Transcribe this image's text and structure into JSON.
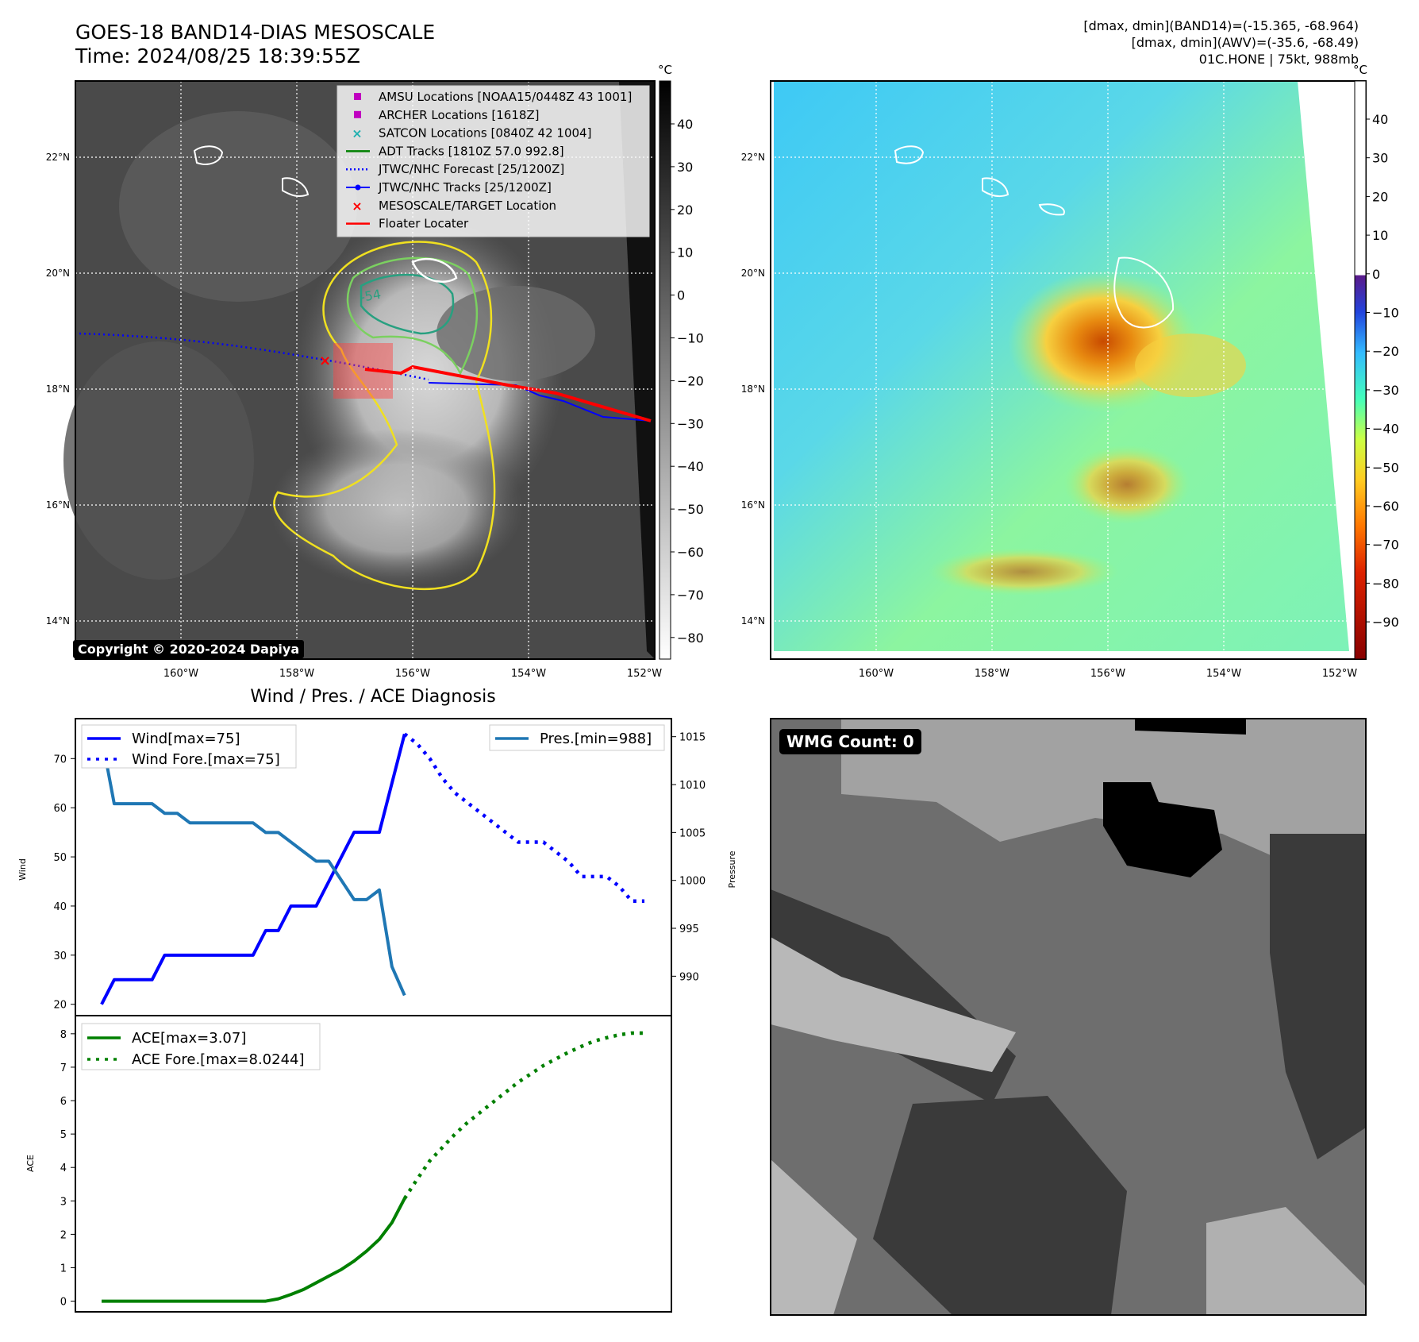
{
  "header": {
    "title_line1": "GOES-18 BAND14-DIAS MESOSCALE",
    "title_line2": "Time: 2024/08/25 18:39:55Z",
    "info_line1": "[dmax, dmin](BAND14)=(-15.365, -68.964)",
    "info_line2": "[dmax, dmin](AWV)=(-35.6, -68.49)",
    "info_line3": "01C.HONE | 75kt, 988mb"
  },
  "map": {
    "lon_ticks": [
      "160°W",
      "158°W",
      "156°W",
      "154°W",
      "152°W"
    ],
    "lat_ticks": [
      "22°N",
      "20°N",
      "18°N",
      "16°N",
      "14°N"
    ],
    "copyright": "Copyright © 2020-2024 Dapiya",
    "contour_labels": [
      "-54"
    ],
    "legend": [
      {
        "label": "AMSU Locations [NOAA15/0448Z 43 1001]",
        "color": "#c000c0",
        "marker": "square"
      },
      {
        "label": "ARCHER Locations [1618Z]",
        "color": "#c000c0",
        "marker": "square"
      },
      {
        "label": "SATCON Locations [0840Z 42 1004]",
        "color": "#20b0b0",
        "marker": "x"
      },
      {
        "label": "ADT Tracks [1810Z 57.0 992.8]",
        "color": "#008000",
        "marker": "line"
      },
      {
        "label": "JTWC/NHC Forecast [25/1200Z]",
        "color": "#0000ff",
        "marker": "dotted"
      },
      {
        "label": "JTWC/NHC Tracks [25/1200Z]",
        "color": "#0000ff",
        "marker": "line-dot"
      },
      {
        "label": "MESOSCALE/TARGET Location",
        "color": "#ff0000",
        "marker": "x"
      },
      {
        "label": "Floater Locater",
        "color": "#ff0000",
        "marker": "line"
      }
    ]
  },
  "colorbar_gray": {
    "unit": "°C",
    "ticks": [
      "40",
      "30",
      "20",
      "10",
      "0",
      "−10",
      "−20",
      "−30",
      "−40",
      "−50",
      "−60",
      "−70",
      "−80"
    ]
  },
  "colorbar_color": {
    "unit": "°C",
    "ticks": [
      "40",
      "30",
      "20",
      "10",
      "0",
      "−10",
      "−20",
      "−30",
      "−40",
      "−50",
      "−60",
      "−70",
      "−80",
      "−90"
    ]
  },
  "chart_data": [
    {
      "type": "line",
      "title": "Wind / Pres. / ACE Diagnosis",
      "ylabel": "Wind",
      "ylabel_right": "Pressure",
      "ylim": [
        18.5,
        77
      ],
      "ylim_right": [
        986.3,
        1016.3
      ],
      "yticks": [
        20,
        30,
        40,
        50,
        60,
        70
      ],
      "yticks_right": [
        990,
        995,
        1000,
        1005,
        1010,
        1015
      ],
      "series": [
        {
          "name": "Wind[max=75]",
          "color": "#0000ff",
          "style": "solid",
          "x": [
            0,
            0.5,
            1,
            2,
            2.5,
            3,
            4,
            5,
            6,
            6.5,
            7,
            7.5,
            8,
            8.5,
            9,
            9.5,
            10,
            10.5,
            11,
            11.5,
            12
          ],
          "values": [
            20,
            25,
            25,
            25,
            30,
            30,
            30,
            30,
            30,
            35,
            35,
            40,
            40,
            40,
            45,
            50,
            55,
            55,
            55,
            65,
            75
          ]
        },
        {
          "name": "Wind Fore.[max=75]",
          "color": "#0000ff",
          "style": "dotted",
          "x": [
            12,
            12.5,
            13,
            13.5,
            14,
            14.5,
            15,
            15.5,
            16,
            16.5,
            17,
            17.5,
            18,
            18.5,
            19,
            19.5,
            20,
            20.5,
            21,
            21.5
          ],
          "values": [
            75,
            73,
            70,
            66,
            63,
            61,
            59,
            57,
            55,
            53,
            53,
            53,
            51,
            49,
            46,
            46,
            46,
            44,
            41,
            41
          ]
        },
        {
          "name": "Pres.[min=988]",
          "color": "#1f77b4",
          "style": "solid",
          "axis": "right",
          "x": [
            0,
            0.5,
            1,
            1.5,
            2,
            2.5,
            3,
            3.5,
            4,
            4.5,
            5,
            5.5,
            6,
            6.5,
            7,
            7.5,
            8,
            8.5,
            9,
            9.5,
            10,
            10.5,
            11,
            11.5,
            12
          ],
          "values": [
            1015,
            1008,
            1008,
            1008,
            1008,
            1007,
            1007,
            1006,
            1006,
            1006,
            1006,
            1006,
            1006,
            1005,
            1005,
            1004,
            1003,
            1002,
            1002,
            1000,
            998,
            998,
            999,
            991,
            988
          ]
        }
      ]
    },
    {
      "type": "line",
      "ylabel": "ACE",
      "ylim": [
        -0.2,
        8.4
      ],
      "yticks": [
        0,
        1,
        2,
        3,
        4,
        5,
        6,
        7,
        8
      ],
      "series": [
        {
          "name": "ACE[max=3.07]",
          "color": "#008000",
          "style": "solid",
          "x": [
            0,
            1,
            2,
            3,
            4,
            5,
            6,
            6.5,
            7,
            7.5,
            8,
            8.5,
            9,
            9.5,
            10,
            10.5,
            11,
            11.5,
            12
          ],
          "values": [
            0,
            0,
            0,
            0,
            0,
            0,
            0,
            0,
            0.07,
            0.2,
            0.35,
            0.55,
            0.75,
            0.95,
            1.2,
            1.5,
            1.85,
            2.35,
            3.07
          ]
        },
        {
          "name": "ACE Fore.[max=8.0244]",
          "color": "#008000",
          "style": "dotted",
          "x": [
            12,
            12.5,
            13,
            13.5,
            14,
            14.5,
            15,
            15.5,
            16,
            16.5,
            17,
            17.5,
            18,
            18.5,
            19,
            19.5,
            20,
            20.5,
            21,
            21.5
          ],
          "values": [
            3.07,
            3.65,
            4.2,
            4.6,
            5.0,
            5.35,
            5.65,
            5.95,
            6.25,
            6.55,
            6.8,
            7.05,
            7.25,
            7.45,
            7.62,
            7.78,
            7.88,
            7.97,
            8.02,
            8.02
          ]
        }
      ]
    }
  ],
  "wmg": {
    "count_label": "WMG Count: 0"
  }
}
